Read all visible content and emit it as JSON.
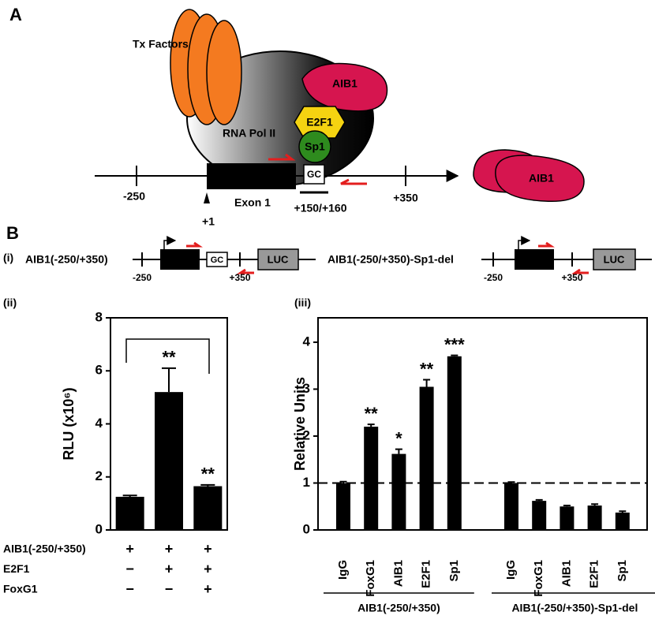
{
  "panels": {
    "a": "A",
    "b": "B",
    "construct_label": "(i)"
  },
  "diagram": {
    "tx_factors": "Tx Factors",
    "rna_pol": "RNA Pol II",
    "aib1": "AIB1",
    "e2f1": "E2F1",
    "sp1": "Sp1",
    "gc": "GC",
    "exon": "Exon 1",
    "pos_start": "-250",
    "pos_tss": "+1",
    "pos_gc": "+150/+160",
    "pos_end": "+350",
    "free_aib1": "AIB1"
  },
  "constructs": [
    {
      "name": "AIB1(-250/+350)",
      "gc": "GC",
      "luc": "LUC",
      "start": "-250",
      "end": "+350"
    },
    {
      "name": "AIB1(-250/+350)-Sp1-del",
      "luc": "LUC",
      "start": "-250",
      "end": "+350"
    }
  ],
  "chart_data": [
    {
      "type": "bar",
      "label": "(ii)",
      "y_label": "RLU (x10⁶)",
      "values": [
        1.25,
        5.2,
        1.65
      ],
      "errors": [
        0.05,
        0.9,
        0.05
      ],
      "annotations": [
        null,
        "**",
        "**"
      ],
      "color": "#000000",
      "ylim": [
        0,
        8
      ],
      "yticks": [
        0,
        2,
        4,
        6,
        8
      ],
      "treatments": [
        {
          "label": "AIB1(-250/+350)",
          "signs": [
            "+",
            "+",
            "+"
          ]
        },
        {
          "label": "E2F1",
          "signs": [
            "−",
            "+",
            "+"
          ]
        },
        {
          "label": "FoxG1",
          "signs": [
            "−",
            "−",
            "+"
          ]
        }
      ]
    },
    {
      "type": "bar",
      "label": "(iii)",
      "y_label": "Relative Units",
      "color": "#000000",
      "ylim": [
        0,
        4.52
      ],
      "yticks": [
        0,
        1,
        2,
        3,
        4
      ],
      "reference_line": 1,
      "groups": [
        {
          "name": "AIB1(-250/+350)",
          "categories": [
            "IgG",
            "FoxG1",
            "AIB1",
            "E2F1",
            "Sp1"
          ],
          "values": [
            1.0,
            2.2,
            1.62,
            3.05,
            3.7
          ],
          "errors": [
            0.03,
            0.05,
            0.1,
            0.15,
            0.02
          ],
          "annotations": [
            null,
            "**",
            "*",
            "**",
            "***"
          ]
        },
        {
          "name": "AIB1(-250/+350)-Sp1-del",
          "categories": [
            "IgG",
            "FoxG1",
            "AIB1",
            "E2F1",
            "Sp1"
          ],
          "values": [
            1.0,
            0.62,
            0.5,
            0.52,
            0.37
          ],
          "errors": [
            0.02,
            0.02,
            0.02,
            0.03,
            0.03
          ],
          "annotations": [
            null,
            null,
            null,
            null,
            null
          ]
        }
      ]
    }
  ]
}
